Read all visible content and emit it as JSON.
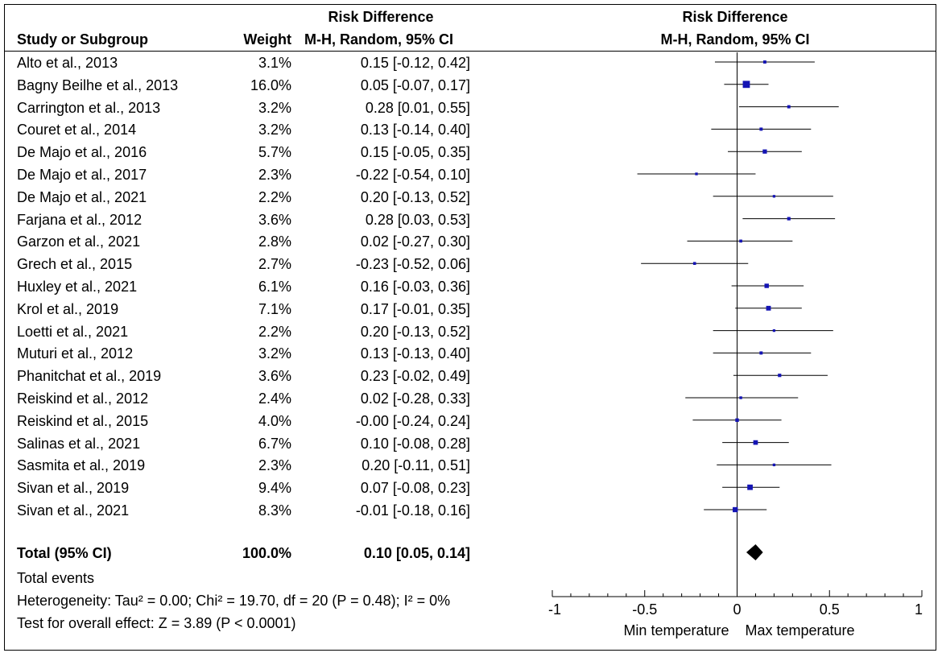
{
  "headers": {
    "left_group_title": "Risk Difference",
    "study_col": "Study or Subgroup",
    "weight_col": "Weight",
    "ci_col": "M-H, Random, 95% CI",
    "right_group_title": "Risk Difference",
    "right_ci_col": "M-H, Random, 95% CI"
  },
  "footer": {
    "total_events": "Total events",
    "heterogeneity": "Heterogeneity: Tau² = 0.00; Chi² = 19.70, df = 20 (P = 0.48); I² = 0%",
    "overall_effect": "Test for overall effect: Z = 3.89 (P < 0.0001)"
  },
  "chart_data": {
    "type": "forest",
    "title": "Risk Difference",
    "method": "M-H, Random, 95% CI",
    "xlim": [
      -1,
      1
    ],
    "xticks": [
      -1,
      -0.5,
      0,
      0.5,
      1
    ],
    "xtick_labels": [
      "-1",
      "-0.5",
      "0",
      "0.5",
      "1"
    ],
    "favours_left": "Min temperature",
    "favours_right": "Max temperature",
    "studies": [
      {
        "name": "Alto et al., 2013",
        "weight": "3.1%",
        "ci_text": "0.15 [-0.12, 0.42]",
        "est": 0.15,
        "lo": -0.12,
        "hi": 0.42,
        "w": 3.1
      },
      {
        "name": "Bagny Beilhe et al., 2013",
        "weight": "16.0%",
        "ci_text": "0.05 [-0.07, 0.17]",
        "est": 0.05,
        "lo": -0.07,
        "hi": 0.17,
        "w": 16.0
      },
      {
        "name": "Carrington et al., 2013",
        "weight": "3.2%",
        "ci_text": "0.28 [0.01, 0.55]",
        "est": 0.28,
        "lo": 0.01,
        "hi": 0.55,
        "w": 3.2
      },
      {
        "name": "Couret et al., 2014",
        "weight": "3.2%",
        "ci_text": "0.13 [-0.14, 0.40]",
        "est": 0.13,
        "lo": -0.14,
        "hi": 0.4,
        "w": 3.2
      },
      {
        "name": "De Majo et al., 2016",
        "weight": "5.7%",
        "ci_text": "0.15 [-0.05, 0.35]",
        "est": 0.15,
        "lo": -0.05,
        "hi": 0.35,
        "w": 5.7
      },
      {
        "name": "De Majo et al., 2017",
        "weight": "2.3%",
        "ci_text": "-0.22 [-0.54, 0.10]",
        "est": -0.22,
        "lo": -0.54,
        "hi": 0.1,
        "w": 2.3
      },
      {
        "name": "De Majo et al., 2021",
        "weight": "2.2%",
        "ci_text": "0.20 [-0.13, 0.52]",
        "est": 0.2,
        "lo": -0.13,
        "hi": 0.52,
        "w": 2.2
      },
      {
        "name": "Farjana et al., 2012",
        "weight": "3.6%",
        "ci_text": "0.28 [0.03, 0.53]",
        "est": 0.28,
        "lo": 0.03,
        "hi": 0.53,
        "w": 3.6
      },
      {
        "name": "Garzon et al., 2021",
        "weight": "2.8%",
        "ci_text": "0.02 [-0.27, 0.30]",
        "est": 0.02,
        "lo": -0.27,
        "hi": 0.3,
        "w": 2.8
      },
      {
        "name": "Grech et al., 2015",
        "weight": "2.7%",
        "ci_text": "-0.23 [-0.52, 0.06]",
        "est": -0.23,
        "lo": -0.52,
        "hi": 0.06,
        "w": 2.7
      },
      {
        "name": "Huxley et al., 2021",
        "weight": "6.1%",
        "ci_text": "0.16 [-0.03, 0.36]",
        "est": 0.16,
        "lo": -0.03,
        "hi": 0.36,
        "w": 6.1
      },
      {
        "name": "Krol et al., 2019",
        "weight": "7.1%",
        "ci_text": "0.17 [-0.01, 0.35]",
        "est": 0.17,
        "lo": -0.01,
        "hi": 0.35,
        "w": 7.1
      },
      {
        "name": "Loetti et al., 2021",
        "weight": "2.2%",
        "ci_text": "0.20 [-0.13, 0.52]",
        "est": 0.2,
        "lo": -0.13,
        "hi": 0.52,
        "w": 2.2
      },
      {
        "name": "Muturi et al., 2012",
        "weight": "3.2%",
        "ci_text": "0.13 [-0.13, 0.40]",
        "est": 0.13,
        "lo": -0.13,
        "hi": 0.4,
        "w": 3.2
      },
      {
        "name": "Phanitchat et al., 2019",
        "weight": "3.6%",
        "ci_text": "0.23 [-0.02, 0.49]",
        "est": 0.23,
        "lo": -0.02,
        "hi": 0.49,
        "w": 3.6
      },
      {
        "name": "Reiskind et al., 2012",
        "weight": "2.4%",
        "ci_text": "0.02 [-0.28, 0.33]",
        "est": 0.02,
        "lo": -0.28,
        "hi": 0.33,
        "w": 2.4
      },
      {
        "name": "Reiskind et al., 2015",
        "weight": "4.0%",
        "ci_text": "-0.00 [-0.24, 0.24]",
        "est": 0.0,
        "lo": -0.24,
        "hi": 0.24,
        "w": 4.0
      },
      {
        "name": "Salinas et al., 2021",
        "weight": "6.7%",
        "ci_text": "0.10 [-0.08, 0.28]",
        "est": 0.1,
        "lo": -0.08,
        "hi": 0.28,
        "w": 6.7
      },
      {
        "name": "Sasmita et al., 2019",
        "weight": "2.3%",
        "ci_text": "0.20 [-0.11, 0.51]",
        "est": 0.2,
        "lo": -0.11,
        "hi": 0.51,
        "w": 2.3
      },
      {
        "name": "Sivan et al., 2019",
        "weight": "9.4%",
        "ci_text": "0.07 [-0.08, 0.23]",
        "est": 0.07,
        "lo": -0.08,
        "hi": 0.23,
        "w": 9.4
      },
      {
        "name": "Sivan et al., 2021",
        "weight": "8.3%",
        "ci_text": "-0.01 [-0.18, 0.16]",
        "est": -0.01,
        "lo": -0.18,
        "hi": 0.16,
        "w": 8.3
      }
    ],
    "total": {
      "name": "Total (95% CI)",
      "weight": "100.0%",
      "ci_text": "0.10 [0.05, 0.14]",
      "est": 0.1,
      "lo": 0.05,
      "hi": 0.14
    },
    "colors": {
      "marker": "#1414b4",
      "line": "#000000",
      "diamond": "#000000"
    }
  }
}
